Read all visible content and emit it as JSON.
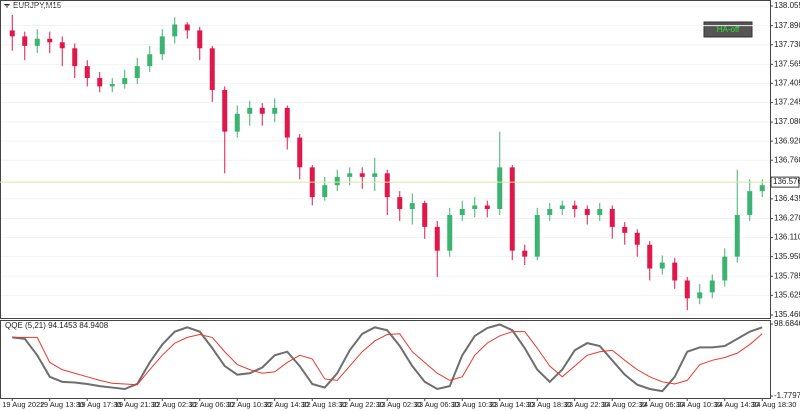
{
  "symbol": "EURJPY,M15",
  "button": "HA-off",
  "chart_data": [
    {
      "type": "candlestick",
      "title": "EURJPY,M15",
      "ylim": [
        135.46,
        138.055
      ],
      "yticks": [
        138.055,
        {
          "value": 137.89,
          "label": "137.890"
        },
        {
          "value": 137.73,
          "label": "137.730"
        },
        137.565,
        137.405,
        137.245,
        {
          "value": 137.08,
          "label": "137.080"
        },
        {
          "value": 136.92,
          "label": "136.920"
        },
        {
          "value": 136.76,
          "label": "136.760"
        },
        136.435,
        {
          "value": 136.27,
          "label": "136.270"
        },
        {
          "value": 136.11,
          "label": "136.110"
        },
        {
          "value": 135.95,
          "label": "135.950"
        },
        135.785,
        135.625,
        {
          "value": 135.46,
          "label": "135.460"
        }
      ],
      "grid": true,
      "up_color": "#3cb371",
      "down_color": "#e0174b",
      "current_price": 136.576,
      "categories": [
        "19 Aug 2022",
        null,
        null,
        "19 Aug 13:30",
        null,
        null,
        "19 Aug 17:30",
        null,
        null,
        "19 Aug 21:30",
        null,
        null,
        "22 Aug 02:30",
        null,
        null,
        "22 Aug 06:30",
        null,
        null,
        "22 Aug 10:30",
        null,
        null,
        "22 Aug 14:30",
        null,
        null,
        "22 Aug 18:30",
        null,
        null,
        "22 Aug 22:30",
        null,
        null,
        "23 Aug 02:30",
        null,
        null,
        "23 Aug 06:30",
        null,
        null,
        "23 Aug 10:30",
        null,
        null,
        "23 Aug 14:30",
        null,
        null,
        "23 Aug 18:30",
        null,
        null,
        "23 Aug 22:30",
        null,
        null,
        "24 Aug 02:30",
        null,
        null,
        "24 Aug 06:30",
        null,
        null,
        "24 Aug 10:30",
        null,
        null,
        "24 Aug 14:30",
        null,
        null,
        "24 Aug 18:30"
      ],
      "open": [
        137.85,
        137.8,
        137.72,
        137.78,
        137.75,
        137.7,
        137.55,
        137.45,
        137.38,
        137.4,
        137.45,
        137.55,
        137.65,
        137.8,
        137.9,
        137.85,
        137.7,
        137.35,
        137.0,
        137.15,
        137.2,
        137.15,
        137.2,
        136.95,
        136.7,
        136.45,
        136.55,
        136.62,
        136.65,
        136.62,
        136.65,
        136.45,
        136.35,
        136.4,
        136.2,
        136.0,
        136.3,
        136.35,
        136.38,
        136.35,
        136.7,
        136.0,
        135.95,
        136.3,
        136.35,
        136.38,
        136.35,
        136.3,
        136.35,
        136.2,
        136.15,
        136.05,
        135.85,
        135.9,
        135.75,
        135.6,
        135.65,
        135.75,
        135.95,
        136.3,
        136.5
      ],
      "high": [
        137.98,
        137.84,
        137.86,
        137.84,
        137.8,
        137.74,
        137.6,
        137.5,
        137.45,
        137.52,
        137.62,
        137.72,
        137.86,
        137.96,
        137.92,
        137.88,
        137.72,
        137.38,
        137.22,
        137.26,
        137.24,
        137.28,
        137.22,
        136.98,
        136.72,
        136.62,
        136.68,
        136.7,
        136.7,
        136.78,
        136.68,
        136.5,
        136.48,
        136.42,
        136.25,
        136.36,
        136.42,
        136.45,
        136.42,
        137.0,
        136.72,
        136.05,
        136.36,
        136.4,
        136.42,
        136.42,
        136.38,
        136.4,
        136.38,
        136.24,
        136.18,
        136.08,
        135.96,
        135.94,
        135.78,
        135.72,
        135.8,
        136.02,
        136.68,
        136.6,
        136.6
      ],
      "low": [
        137.68,
        137.6,
        137.66,
        137.66,
        137.55,
        137.45,
        137.38,
        137.33,
        137.33,
        137.36,
        137.4,
        137.5,
        137.6,
        137.74,
        137.78,
        137.6,
        137.25,
        136.65,
        136.95,
        137.05,
        137.05,
        137.08,
        136.85,
        136.6,
        136.38,
        136.42,
        136.5,
        136.55,
        136.52,
        136.5,
        136.3,
        136.25,
        136.22,
        136.1,
        135.78,
        135.95,
        136.25,
        136.28,
        136.28,
        136.3,
        135.92,
        135.88,
        135.92,
        136.25,
        136.3,
        136.28,
        136.22,
        136.25,
        136.1,
        136.05,
        135.95,
        135.75,
        135.8,
        135.68,
        135.5,
        135.55,
        135.6,
        135.7,
        135.9,
        136.25,
        136.45
      ],
      "close": [
        137.8,
        137.72,
        137.78,
        137.75,
        137.7,
        137.55,
        137.45,
        137.38,
        137.4,
        137.45,
        137.55,
        137.65,
        137.8,
        137.9,
        137.85,
        137.7,
        137.35,
        137.0,
        137.15,
        137.2,
        137.15,
        137.2,
        136.95,
        136.7,
        136.45,
        136.55,
        136.62,
        136.65,
        136.62,
        136.65,
        136.45,
        136.35,
        136.4,
        136.2,
        136.0,
        136.3,
        136.35,
        136.38,
        136.35,
        136.7,
        136.0,
        135.95,
        136.3,
        136.35,
        136.38,
        136.35,
        136.3,
        136.35,
        136.2,
        136.15,
        136.05,
        135.85,
        135.9,
        135.75,
        135.6,
        135.65,
        135.75,
        135.95,
        136.3,
        136.5,
        136.55
      ]
    },
    {
      "type": "line",
      "title": "QQE (5,21) 94.1453 84.9408",
      "ylim": [
        -1.7797,
        98.6846
      ],
      "yticks": [
        98.6846,
        -1.7797
      ],
      "series": [
        {
          "color": "#6e6e6e",
          "width": 2,
          "values": [
            80,
            78,
            55,
            25,
            18,
            17,
            15,
            12,
            10,
            8,
            15,
            45,
            70,
            88,
            94,
            88,
            65,
            40,
            28,
            30,
            38,
            55,
            60,
            40,
            15,
            10,
            30,
            62,
            85,
            94,
            90,
            68,
            40,
            18,
            8,
            12,
            55,
            82,
            93,
            98,
            90,
            65,
            35,
            18,
            35,
            62,
            72,
            68,
            48,
            28,
            14,
            8,
            5,
            25,
            60,
            66,
            66,
            68,
            78,
            88,
            94
          ]
        },
        {
          "color": "#e8392d",
          "width": 1,
          "values": [
            80,
            80,
            80,
            45,
            35,
            30,
            25,
            20,
            16,
            15,
            14,
            35,
            55,
            72,
            80,
            84,
            80,
            60,
            42,
            35,
            30,
            32,
            45,
            55,
            50,
            22,
            20,
            40,
            60,
            75,
            84,
            85,
            60,
            45,
            30,
            20,
            25,
            55,
            72,
            82,
            88,
            88,
            65,
            40,
            25,
            40,
            55,
            60,
            62,
            48,
            35,
            25,
            18,
            15,
            20,
            42,
            48,
            52,
            58,
            70,
            85
          ]
        }
      ]
    }
  ]
}
